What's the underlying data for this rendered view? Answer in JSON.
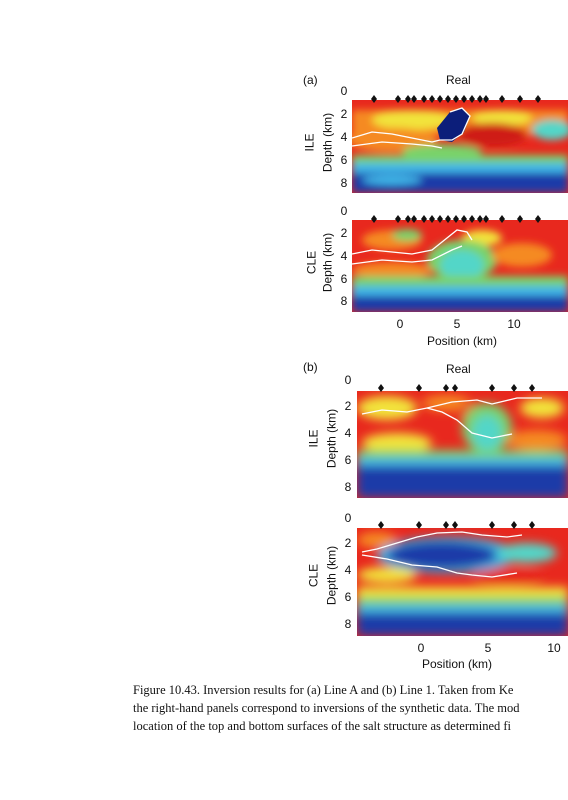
{
  "figure": {
    "part_a": {
      "label": "(a)",
      "title": "Real",
      "ile_label": "ILE",
      "cle_label": "CLE",
      "ylabel": "Depth (km)",
      "xlabel": "Position (km)",
      "y_ticks": [
        "0",
        "2",
        "4",
        "6",
        "8"
      ],
      "x_ticks": [
        "0",
        "5",
        "10"
      ]
    },
    "part_b": {
      "label": "(b)",
      "title": "Real",
      "ile_label": "ILE",
      "cle_label": "CLE",
      "ylabel": "Depth (km)",
      "xlabel": "Position (km)",
      "y_ticks": [
        "0",
        "2",
        "4",
        "6",
        "8"
      ],
      "x_ticks": [
        "0",
        "5",
        "10"
      ]
    }
  },
  "caption": {
    "line1": "Figure 10.43.  Inversion results for (a) Line A and (b) Line 1. Taken from Ke",
    "line2": "the right-hand panels correspond to inversions of the synthetic data. The mod",
    "line3": "location of the top and bottom surfaces of the salt structure as determined fi"
  },
  "colors": {
    "deep_blue": "#1f3aa8",
    "light_blue": "#3fb6e8",
    "cyan": "#52d6c8",
    "green": "#79d36a",
    "yellow": "#f2e33a",
    "orange": "#f58a23",
    "red": "#e8281e",
    "dark_navy": "#0c1e7a"
  }
}
